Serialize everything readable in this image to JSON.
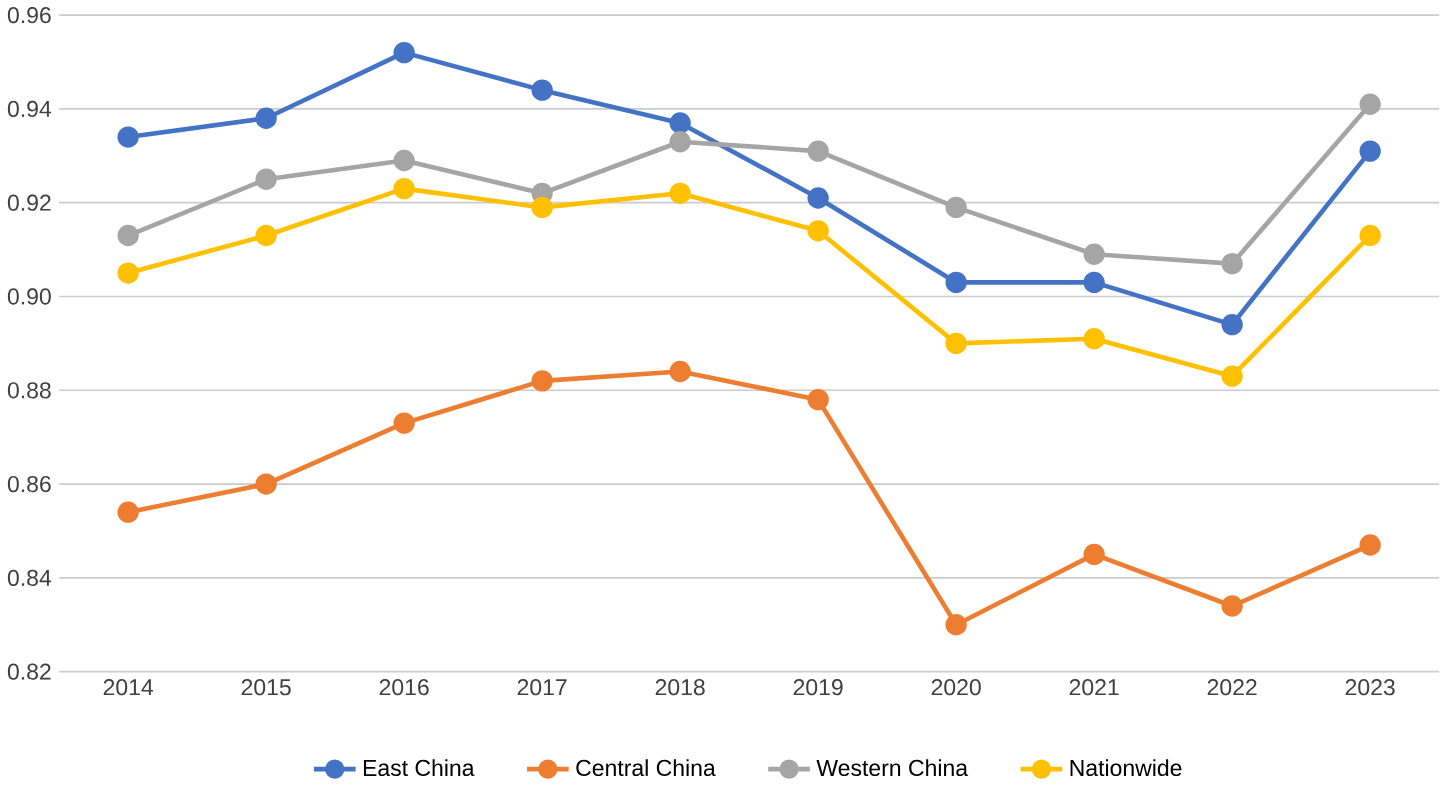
{
  "chart_data": {
    "type": "line",
    "categories": [
      "2014",
      "2015",
      "2016",
      "2017",
      "2018",
      "2019",
      "2020",
      "2021",
      "2022",
      "2023"
    ],
    "series": [
      {
        "name": "East China",
        "color": "#4472c4",
        "values": [
          0.934,
          0.938,
          0.952,
          0.944,
          0.937,
          0.921,
          0.903,
          0.903,
          0.894,
          0.931
        ]
      },
      {
        "name": "Central China",
        "color": "#ed7d31",
        "values": [
          0.854,
          0.86,
          0.873,
          0.882,
          0.884,
          0.878,
          0.83,
          0.845,
          0.834,
          0.847
        ]
      },
      {
        "name": "Western China",
        "color": "#a5a5a5",
        "values": [
          0.913,
          0.925,
          0.929,
          0.922,
          0.933,
          0.931,
          0.919,
          0.909,
          0.907,
          0.941
        ]
      },
      {
        "name": "Nationwide",
        "color": "#ffc000",
        "values": [
          0.905,
          0.913,
          0.923,
          0.919,
          0.922,
          0.914,
          0.89,
          0.891,
          0.883,
          0.913
        ]
      }
    ],
    "ylim": [
      0.82,
      0.96
    ],
    "yticks": [
      {
        "value": 0.82,
        "label": "0.82"
      },
      {
        "value": 0.84,
        "label": "0.84"
      },
      {
        "value": 0.86,
        "label": "0.86"
      },
      {
        "value": 0.88,
        "label": "0.88"
      },
      {
        "value": 0.9,
        "label": "0.90"
      },
      {
        "value": 0.92,
        "label": "0.92"
      },
      {
        "value": 0.94,
        "label": "0.94"
      },
      {
        "value": 0.96,
        "label": "0.96"
      }
    ],
    "grid": "y",
    "legend": "bottom",
    "marker": "circle",
    "line_style": "solid"
  }
}
